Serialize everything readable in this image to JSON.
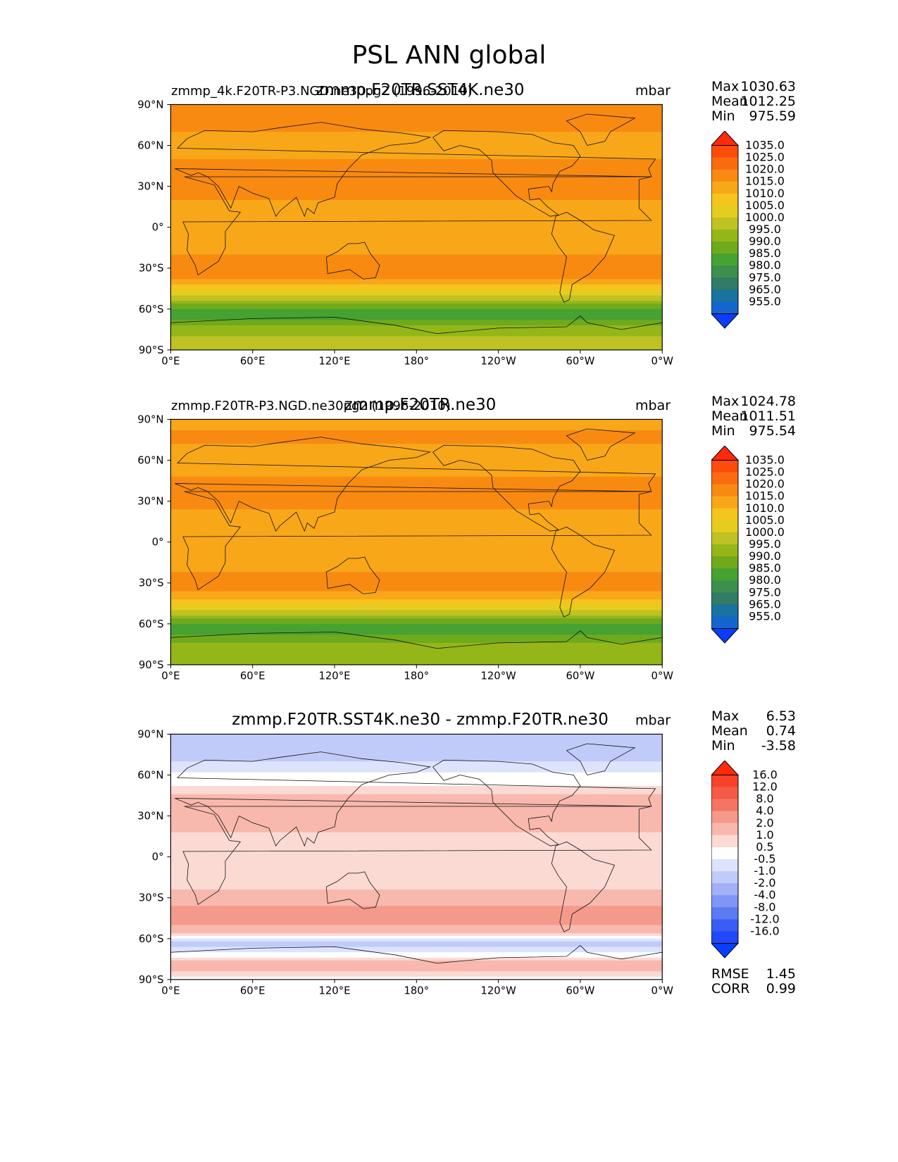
{
  "title": "PSL ANN global",
  "panels": [
    {
      "left_title": "zmmp_4k.F20TR-P3.NGD.ne30pg2 (1996-2010)",
      "center_title": "zmmp.F20TR.SST4K.ne30",
      "units": "mbar",
      "stats": [
        {
          "label": "Max",
          "value": "1030.63"
        },
        {
          "label": "Mean",
          "value": "1012.25"
        },
        {
          "label": "Min",
          "value": "975.59"
        }
      ],
      "colorbar": "abs",
      "extra_stats": []
    },
    {
      "left_title": "zmmp.F20TR-P3.NGD.ne30pg2 (1996-2010)",
      "center_title": "zmmp.F20TR.ne30",
      "units": "mbar",
      "stats": [
        {
          "label": "Max",
          "value": "1024.78"
        },
        {
          "label": "Mean",
          "value": "1011.51"
        },
        {
          "label": "Min",
          "value": "975.54"
        }
      ],
      "colorbar": "abs",
      "extra_stats": []
    },
    {
      "left_title": "",
      "center_title": "zmmp.F20TR.SST4K.ne30 - zmmp.F20TR.ne30",
      "units": "mbar",
      "stats": [
        {
          "label": "Max",
          "value": "6.53"
        },
        {
          "label": "Mean",
          "value": "0.74"
        },
        {
          "label": "Min",
          "value": "-3.58"
        }
      ],
      "colorbar": "diff",
      "extra_stats": [
        {
          "label": "RMSE",
          "value": "1.45"
        },
        {
          "label": "CORR",
          "value": "0.99"
        }
      ]
    }
  ],
  "chart_data": [
    {
      "type": "heatmap",
      "title": "zmmp.F20TR.SST4K.ne30",
      "variable": "PSL",
      "units": "mbar",
      "x_ticks": [
        "0°E",
        "60°E",
        "120°E",
        "180°",
        "120°W",
        "60°W",
        "0°W"
      ],
      "y_ticks": [
        "90°N",
        "60°N",
        "30°N",
        "0°",
        "30°S",
        "60°S",
        "90°S"
      ],
      "xlim": [
        0,
        360
      ],
      "ylim": [
        -90,
        90
      ],
      "zonal_profile": [
        {
          "lat": 90,
          "value": 1015
        },
        {
          "lat": 75,
          "value": 1017
        },
        {
          "lat": 60,
          "value": 1010
        },
        {
          "lat": 45,
          "value": 1017
        },
        {
          "lat": 30,
          "value": 1018
        },
        {
          "lat": 15,
          "value": 1013
        },
        {
          "lat": 0,
          "value": 1011
        },
        {
          "lat": -15,
          "value": 1013
        },
        {
          "lat": -30,
          "value": 1019
        },
        {
          "lat": -40,
          "value": 1014
        },
        {
          "lat": -50,
          "value": 1000
        },
        {
          "lat": -58,
          "value": 987
        },
        {
          "lat": -65,
          "value": 981
        },
        {
          "lat": -72,
          "value": 990
        },
        {
          "lat": -80,
          "value": 995
        },
        {
          "lat": -90,
          "value": 998
        }
      ]
    },
    {
      "type": "heatmap",
      "title": "zmmp.F20TR.ne30",
      "variable": "PSL",
      "units": "mbar",
      "x_ticks": [
        "0°E",
        "60°E",
        "120°E",
        "180°",
        "120°W",
        "60°W",
        "0°W"
      ],
      "y_ticks": [
        "90°N",
        "60°N",
        "30°N",
        "0°",
        "30°S",
        "60°S",
        "90°S"
      ],
      "xlim": [
        0,
        360
      ],
      "ylim": [
        -90,
        90
      ],
      "zonal_profile": [
        {
          "lat": 90,
          "value": 1014
        },
        {
          "lat": 75,
          "value": 1016
        },
        {
          "lat": 60,
          "value": 1011
        },
        {
          "lat": 45,
          "value": 1016
        },
        {
          "lat": 30,
          "value": 1017
        },
        {
          "lat": 15,
          "value": 1012
        },
        {
          "lat": 0,
          "value": 1010
        },
        {
          "lat": -15,
          "value": 1012
        },
        {
          "lat": -30,
          "value": 1018
        },
        {
          "lat": -40,
          "value": 1013
        },
        {
          "lat": -50,
          "value": 1000
        },
        {
          "lat": -58,
          "value": 987
        },
        {
          "lat": -65,
          "value": 982
        },
        {
          "lat": -72,
          "value": 989
        },
        {
          "lat": -80,
          "value": 992
        },
        {
          "lat": -90,
          "value": 994
        }
      ]
    },
    {
      "type": "heatmap",
      "title": "zmmp.F20TR.SST4K.ne30 - zmmp.F20TR.ne30",
      "variable": "PSL difference",
      "units": "mbar",
      "x_ticks": [
        "0°E",
        "60°E",
        "120°E",
        "180°",
        "120°W",
        "60°W",
        "0°W"
      ],
      "y_ticks": [
        "90°N",
        "60°N",
        "30°N",
        "0°",
        "30°S",
        "60°S",
        "90°S"
      ],
      "xlim": [
        0,
        360
      ],
      "ylim": [
        -90,
        90
      ],
      "zonal_profile": [
        {
          "lat": 90,
          "value": -1.5
        },
        {
          "lat": 75,
          "value": -1.2
        },
        {
          "lat": 65,
          "value": -0.8
        },
        {
          "lat": 55,
          "value": 0.3
        },
        {
          "lat": 40,
          "value": 1.6
        },
        {
          "lat": 25,
          "value": 1.2
        },
        {
          "lat": 10,
          "value": 0.8
        },
        {
          "lat": 0,
          "value": 0.8
        },
        {
          "lat": -15,
          "value": 0.7
        },
        {
          "lat": -30,
          "value": 1.2
        },
        {
          "lat": -40,
          "value": 2.4
        },
        {
          "lat": -50,
          "value": 2.2
        },
        {
          "lat": -57,
          "value": 0.6
        },
        {
          "lat": -63,
          "value": -1.2
        },
        {
          "lat": -70,
          "value": -0.6
        },
        {
          "lat": -78,
          "value": 1.5
        },
        {
          "lat": -90,
          "value": 0.4
        }
      ]
    }
  ],
  "colorbars": {
    "abs": {
      "labels": [
        "1035.0",
        "1025.0",
        "1020.0",
        "1015.0",
        "1010.0",
        "1005.0",
        "1000.0",
        "995.0",
        "990.0",
        "985.0",
        "980.0",
        "975.0",
        "965.0",
        "955.0"
      ],
      "levels": [
        1035,
        1025,
        1020,
        1015,
        1010,
        1005,
        1000,
        995,
        990,
        985,
        980,
        975,
        965,
        955
      ],
      "colors": [
        "#ff2a0b",
        "#fc4c0c",
        "#fa6b0f",
        "#f88a11",
        "#f8a718",
        "#f5c41d",
        "#e6cc1e",
        "#bfc223",
        "#95b619",
        "#6faa1c",
        "#46a231",
        "#3e8f4e",
        "#327b66",
        "#1a72a0",
        "#1466cf",
        "#0b3dff"
      ]
    },
    "diff": {
      "labels": [
        "16.0",
        "12.0",
        "8.0",
        "4.0",
        "2.0",
        "1.0",
        "0.5",
        "-0.5",
        "-1.0",
        "-2.0",
        "-4.0",
        "-8.0",
        "-12.0",
        "-16.0"
      ],
      "levels": [
        16,
        12,
        8,
        4,
        2,
        1,
        0.5,
        -0.5,
        -1,
        -2,
        -4,
        -8,
        -12,
        -16
      ],
      "colors": [
        "#ff2a0b",
        "#f8422c",
        "#f65a46",
        "#f47564",
        "#f59a8b",
        "#f8b8ad",
        "#fbdad4",
        "#ffffff",
        "#dde3fc",
        "#c1cbf9",
        "#a1b0f7",
        "#8096f5",
        "#5c7bf3",
        "#3a5ef5",
        "#2148f9",
        "#0b3dff"
      ]
    }
  }
}
